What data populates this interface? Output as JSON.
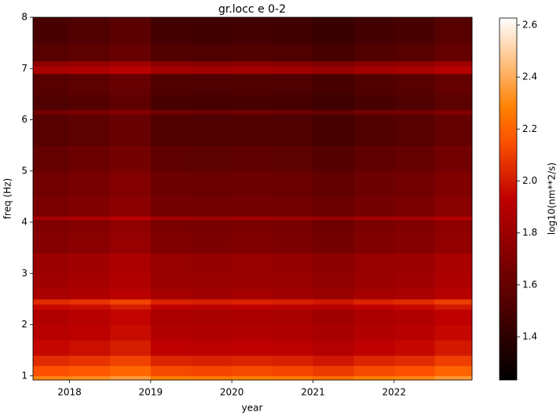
{
  "chart_data": {
    "type": "heatmap",
    "title": "gr.locc e 0-2",
    "x_label": "year",
    "y_label": "freq (Hz)",
    "colorbar_label": "log10(nm**2/s)",
    "colormap": "gist_heat",
    "x_edges": [
      2017.55,
      2018,
      2018.5,
      2019,
      2019.5,
      2020,
      2020.5,
      2021,
      2021.5,
      2022,
      2022.5,
      2022.96
    ],
    "y_edges": [
      0.92,
      1.0,
      1.2,
      1.4,
      1.7,
      2.0,
      2.3,
      2.4,
      2.5,
      2.7,
      3.0,
      3.4,
      3.8,
      4.05,
      4.12,
      4.5,
      5,
      5.5,
      6.1,
      6.2,
      6.5,
      6.9,
      7.05,
      7.15,
      7.5,
      8
    ],
    "z": [
      [
        2.3,
        2.32,
        2.36,
        2.28,
        2.27,
        2.28,
        2.27,
        2.24,
        2.28,
        2.3,
        2.35
      ],
      [
        2.15,
        2.17,
        2.21,
        2.13,
        2.12,
        2.13,
        2.12,
        2.09,
        2.13,
        2.15,
        2.2
      ],
      [
        2.05,
        2.07,
        2.11,
        2.03,
        2.02,
        2.03,
        2.02,
        1.99,
        2.03,
        2.05,
        2.1
      ],
      [
        1.95,
        1.97,
        2.01,
        1.93,
        1.92,
        1.93,
        1.92,
        1.89,
        1.93,
        1.95,
        2.0
      ],
      [
        1.9,
        1.92,
        1.96,
        1.88,
        1.87,
        1.88,
        1.87,
        1.84,
        1.88,
        1.9,
        1.95
      ],
      [
        1.88,
        1.9,
        1.94,
        1.86,
        1.85,
        1.86,
        1.85,
        1.82,
        1.86,
        1.88,
        1.93
      ],
      [
        1.95,
        1.97,
        2.01,
        1.93,
        1.92,
        1.93,
        1.92,
        1.89,
        1.93,
        1.95,
        2.0
      ],
      [
        2.05,
        2.07,
        2.11,
        2.03,
        2.02,
        2.03,
        2.02,
        1.99,
        2.03,
        2.05,
        2.1
      ],
      [
        1.85,
        1.87,
        1.91,
        1.83,
        1.82,
        1.83,
        1.82,
        1.79,
        1.83,
        1.85,
        1.9
      ],
      [
        1.82,
        1.84,
        1.88,
        1.8,
        1.79,
        1.8,
        1.79,
        1.76,
        1.8,
        1.82,
        1.87
      ],
      [
        1.8,
        1.82,
        1.86,
        1.78,
        1.77,
        1.78,
        1.77,
        1.74,
        1.78,
        1.8,
        1.85
      ],
      [
        1.72,
        1.74,
        1.78,
        1.7,
        1.69,
        1.7,
        1.69,
        1.66,
        1.7,
        1.72,
        1.77
      ],
      [
        1.7,
        1.72,
        1.76,
        1.68,
        1.67,
        1.68,
        1.67,
        1.64,
        1.68,
        1.7,
        1.75
      ],
      [
        1.85,
        1.87,
        1.91,
        1.83,
        1.82,
        1.83,
        1.82,
        1.79,
        1.83,
        1.85,
        1.9
      ],
      [
        1.68,
        1.7,
        1.74,
        1.66,
        1.65,
        1.66,
        1.65,
        1.62,
        1.66,
        1.68,
        1.73
      ],
      [
        1.65,
        1.67,
        1.71,
        1.63,
        1.62,
        1.63,
        1.62,
        1.59,
        1.63,
        1.65,
        1.7
      ],
      [
        1.6,
        1.62,
        1.66,
        1.58,
        1.57,
        1.58,
        1.57,
        1.54,
        1.58,
        1.6,
        1.65
      ],
      [
        1.55,
        1.57,
        1.61,
        1.53,
        1.52,
        1.53,
        1.52,
        1.49,
        1.53,
        1.55,
        1.6
      ],
      [
        1.65,
        1.67,
        1.71,
        1.63,
        1.62,
        1.63,
        1.62,
        1.59,
        1.63,
        1.65,
        1.7
      ],
      [
        1.52,
        1.54,
        1.58,
        1.5,
        1.49,
        1.5,
        1.49,
        1.46,
        1.5,
        1.52,
        1.57
      ],
      [
        1.55,
        1.57,
        1.61,
        1.53,
        1.52,
        1.53,
        1.52,
        1.49,
        1.53,
        1.55,
        1.6
      ],
      [
        1.85,
        1.87,
        1.91,
        1.83,
        1.82,
        1.83,
        1.82,
        1.79,
        1.83,
        1.85,
        1.9
      ],
      [
        1.75,
        1.77,
        1.81,
        1.73,
        1.72,
        1.73,
        1.72,
        1.69,
        1.73,
        1.75,
        1.8
      ],
      [
        1.55,
        1.57,
        1.61,
        1.53,
        1.52,
        1.53,
        1.52,
        1.49,
        1.53,
        1.55,
        1.6
      ],
      [
        1.5,
        1.52,
        1.56,
        1.48,
        1.47,
        1.48,
        1.47,
        1.44,
        1.48,
        1.5,
        1.55
      ]
    ],
    "xlim": [
      2017.55,
      2022.96
    ],
    "xticks": [
      2018,
      2019,
      2020,
      2021,
      2022
    ],
    "ylim": [
      0.92,
      8
    ],
    "yticks": [
      1,
      2,
      3,
      4,
      5,
      6,
      7,
      8
    ],
    "clim": [
      1.234,
      2.627
    ],
    "cticks": [
      1.4,
      1.6,
      1.8,
      {
        "value": 2.0,
        "label": "2.0"
      },
      2.2,
      2.4,
      2.6
    ]
  }
}
